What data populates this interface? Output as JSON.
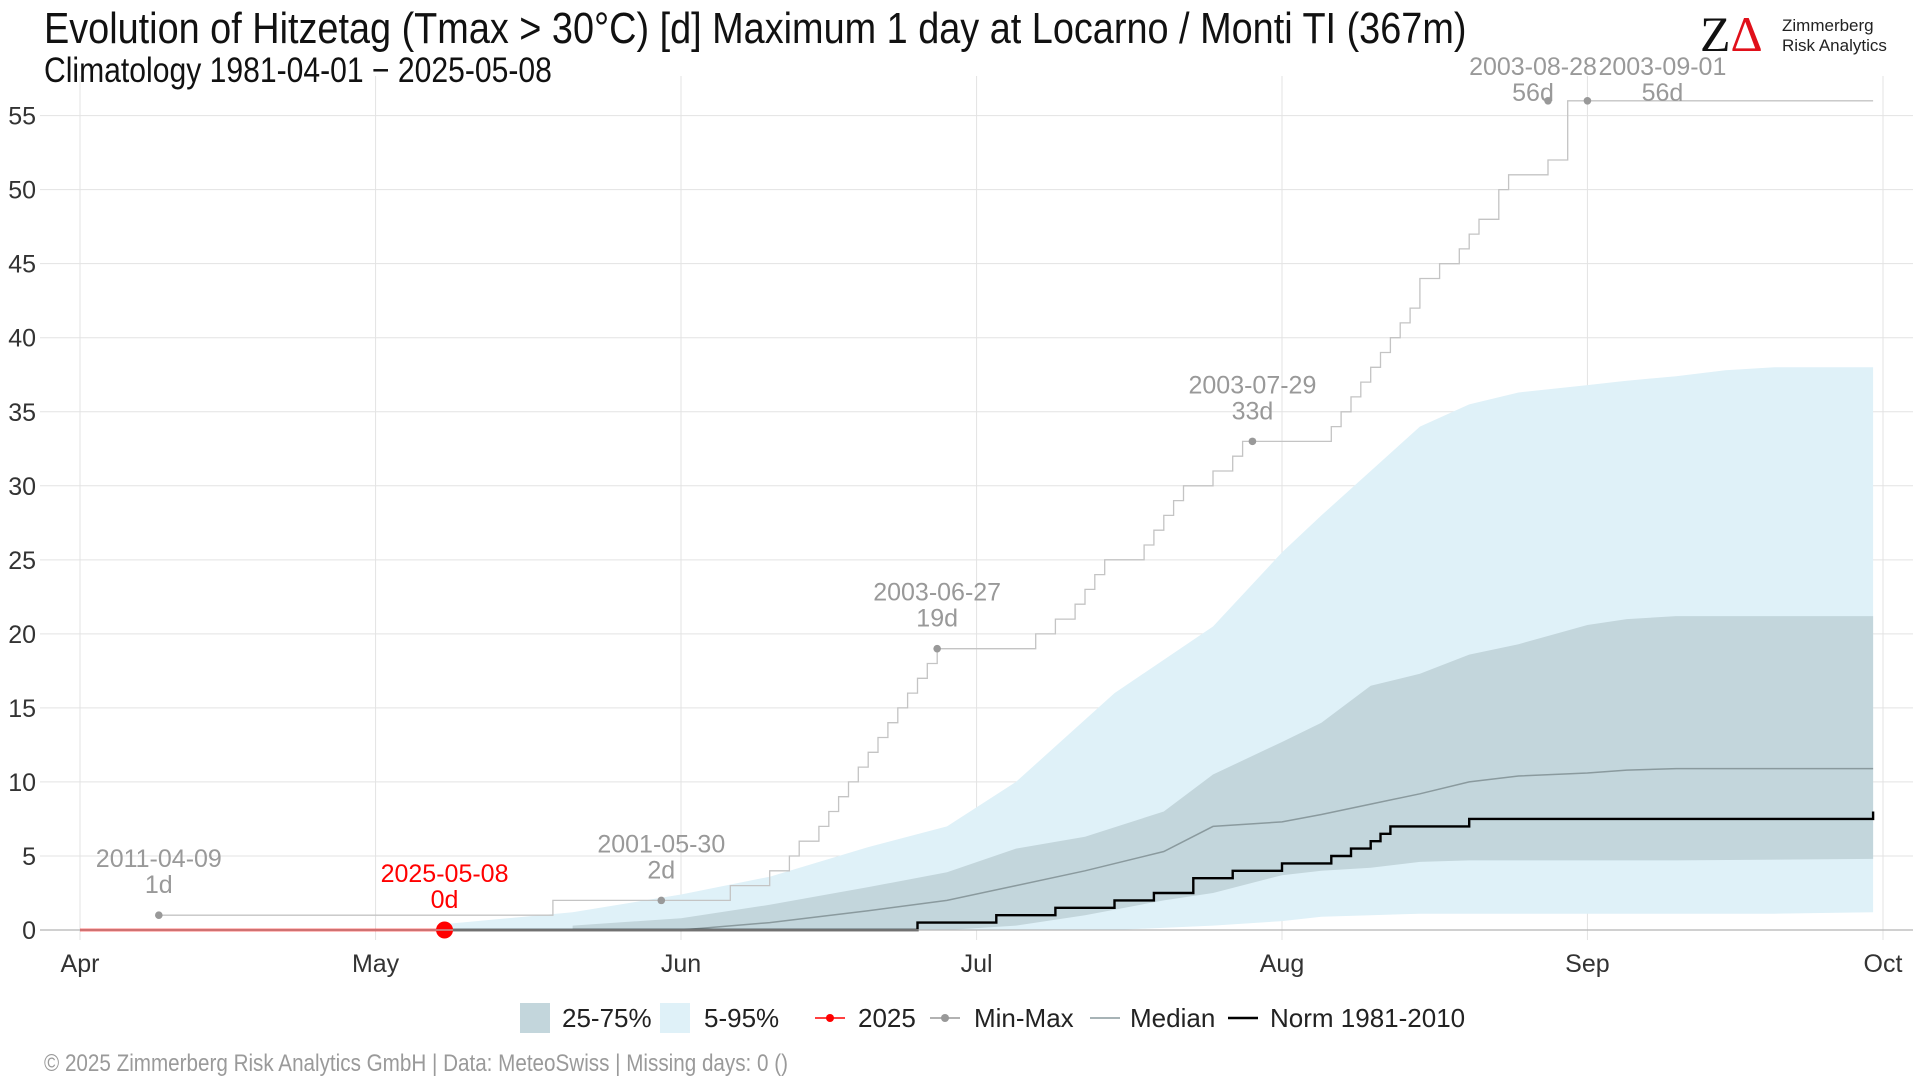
{
  "header": {
    "title": "Evolution of Hitzetag (Tmax > 30°C) [d] Maximum 1 day at Locarno / Monti  TI (367m)",
    "subtitle": "Climatology 1981-04-01 − 2025-05-08"
  },
  "logo": {
    "mark": "Z",
    "mark_delta": "Δ",
    "line1": "Zimmerberg",
    "line2": "Risk Analytics"
  },
  "footer": {
    "text": "©  2025 Zimmerberg Risk Analytics GmbH | Data: MeteoSwiss | Missing days: 0 ()"
  },
  "chart_data": {
    "type": "area",
    "x_axis": {
      "type": "date",
      "range": [
        "2025-04-01",
        "2025-10-01"
      ],
      "ticks": [
        {
          "date": "2025-04-01",
          "label": "Apr"
        },
        {
          "date": "2025-05-01",
          "label": "May"
        },
        {
          "date": "2025-06-01",
          "label": "Jun"
        },
        {
          "date": "2025-07-01",
          "label": "Jul"
        },
        {
          "date": "2025-08-01",
          "label": "Aug"
        },
        {
          "date": "2025-09-01",
          "label": "Sep"
        },
        {
          "date": "2025-10-01",
          "label": "Oct"
        }
      ]
    },
    "y_axis": {
      "range": [
        0,
        57
      ],
      "ticks": [
        0,
        5,
        10,
        15,
        20,
        25,
        30,
        35,
        40,
        45,
        50,
        55
      ]
    },
    "grid": true,
    "legend_position": "bottom",
    "colors": {
      "band_5_95": "#dff1f8",
      "band_25_75": "#c3d6dc",
      "median": "#8a9a9e",
      "norm": "#000000",
      "current": "#ff0000",
      "minmax": "#999999",
      "minmax_line": "#c4c4c4",
      "grid": "#e3e3e3",
      "axis": "#b5b5b5"
    },
    "series": [
      {
        "name": "5-95%",
        "kind": "band",
        "x": [
          "2025-05-08",
          "2025-05-21",
          "2025-06-01",
          "2025-06-10",
          "2025-06-20",
          "2025-06-28",
          "2025-07-05",
          "2025-07-15",
          "2025-07-25",
          "2025-08-01",
          "2025-08-05",
          "2025-08-10",
          "2025-08-15",
          "2025-08-20",
          "2025-08-25",
          "2025-09-01",
          "2025-09-05",
          "2025-09-10",
          "2025-09-15",
          "2025-09-20",
          "2025-09-30"
        ],
        "lower": [
          0,
          0,
          0,
          0,
          0,
          0,
          0,
          0,
          0.3,
          0.6,
          0.9,
          1.0,
          1.1,
          1.1,
          1.1,
          1.1,
          1.1,
          1.1,
          1.1,
          1.1,
          1.2
        ],
        "upper": [
          0.4,
          1.2,
          2.4,
          3.6,
          5.6,
          7.0,
          10.0,
          16.0,
          20.5,
          25.5,
          28.0,
          31.0,
          34.0,
          35.5,
          36.3,
          36.8,
          37.1,
          37.4,
          37.8,
          38.0,
          38.0
        ]
      },
      {
        "name": "25-75%",
        "kind": "band",
        "x": [
          "2025-05-21",
          "2025-06-01",
          "2025-06-10",
          "2025-06-20",
          "2025-06-28",
          "2025-07-05",
          "2025-07-12",
          "2025-07-20",
          "2025-07-25",
          "2025-08-01",
          "2025-08-05",
          "2025-08-10",
          "2025-08-15",
          "2025-08-20",
          "2025-08-25",
          "2025-09-01",
          "2025-09-05",
          "2025-09-10",
          "2025-09-30"
        ],
        "lower": [
          0,
          0,
          0,
          0,
          0,
          0.3,
          1.0,
          2.0,
          2.5,
          3.7,
          4.0,
          4.2,
          4.6,
          4.7,
          4.7,
          4.7,
          4.7,
          4.7,
          4.8
        ],
        "upper": [
          0.3,
          0.8,
          1.7,
          2.9,
          3.9,
          5.5,
          6.3,
          8.0,
          10.5,
          12.7,
          14.0,
          16.5,
          17.3,
          18.6,
          19.3,
          20.6,
          21.0,
          21.2,
          21.2
        ]
      },
      {
        "name": "Median",
        "kind": "line",
        "x": [
          "2025-06-01",
          "2025-06-10",
          "2025-06-20",
          "2025-06-28",
          "2025-07-05",
          "2025-07-12",
          "2025-07-20",
          "2025-07-25",
          "2025-08-01",
          "2025-08-05",
          "2025-08-10",
          "2025-08-15",
          "2025-08-20",
          "2025-08-25",
          "2025-09-01",
          "2025-09-05",
          "2025-09-10",
          "2025-09-30"
        ],
        "y": [
          0,
          0.5,
          1.3,
          2.0,
          3.0,
          4.0,
          5.3,
          7.0,
          7.3,
          7.8,
          8.5,
          9.2,
          10.0,
          10.4,
          10.6,
          10.8,
          10.9,
          10.9
        ]
      },
      {
        "name": "Norm 1981-2010",
        "kind": "step",
        "x": [
          "2025-05-08",
          "2025-06-25",
          "2025-07-03",
          "2025-07-09",
          "2025-07-15",
          "2025-07-19",
          "2025-07-23",
          "2025-07-27",
          "2025-08-01",
          "2025-08-06",
          "2025-08-08",
          "2025-08-10",
          "2025-08-11",
          "2025-08-12",
          "2025-08-20",
          "2025-09-30"
        ],
        "y": [
          0,
          0.5,
          1.0,
          1.5,
          2.0,
          2.5,
          3.5,
          4.0,
          4.5,
          5.0,
          5.5,
          6.0,
          6.5,
          7.0,
          7.5,
          8.0
        ]
      },
      {
        "name": "Min-Max",
        "kind": "step",
        "x": [
          "2025-04-09",
          "2025-05-19",
          "2025-05-29",
          "2025-06-06",
          "2025-06-10",
          "2025-06-12",
          "2025-06-13",
          "2025-06-15",
          "2025-06-16",
          "2025-06-17",
          "2025-06-18",
          "2025-06-19",
          "2025-06-20",
          "2025-06-21",
          "2025-06-22",
          "2025-06-23",
          "2025-06-24",
          "2025-06-25",
          "2025-06-26",
          "2025-06-27",
          "2025-07-07",
          "2025-07-09",
          "2025-07-11",
          "2025-07-12",
          "2025-07-13",
          "2025-07-14",
          "2025-07-15",
          "2025-07-18",
          "2025-07-19",
          "2025-07-20",
          "2025-07-21",
          "2025-07-22",
          "2025-07-23",
          "2025-07-25",
          "2025-07-27",
          "2025-07-28",
          "2025-07-29",
          "2025-08-06",
          "2025-08-07",
          "2025-08-08",
          "2025-08-09",
          "2025-08-10",
          "2025-08-11",
          "2025-08-12",
          "2025-08-13",
          "2025-08-14",
          "2025-08-15",
          "2025-08-17",
          "2025-08-19",
          "2025-08-20",
          "2025-08-21",
          "2025-08-22",
          "2025-08-23",
          "2025-08-24",
          "2025-08-28",
          "2025-08-30",
          "2025-09-30"
        ],
        "y": [
          1,
          2,
          2,
          3,
          4,
          5,
          6,
          7,
          8,
          9,
          10,
          11,
          12,
          13,
          14,
          15,
          16,
          17,
          18,
          19,
          20,
          21,
          22,
          23,
          24,
          25,
          25,
          26,
          27,
          28,
          29,
          30,
          30,
          31,
          32,
          33,
          33,
          34,
          35,
          36,
          37,
          38,
          39,
          40,
          41,
          42,
          44,
          45,
          46,
          47,
          48,
          48,
          50,
          51,
          52,
          56,
          56
        ]
      },
      {
        "name": "2025",
        "kind": "line",
        "x": [
          "2025-04-01",
          "2025-05-08"
        ],
        "y": [
          0,
          0
        ]
      }
    ],
    "markers": [
      {
        "series": "Min-Max",
        "x": "2025-04-09",
        "y": 1
      },
      {
        "series": "Min-Max",
        "x": "2025-05-30",
        "y": 2
      },
      {
        "series": "Min-Max",
        "x": "2025-06-27",
        "y": 19
      },
      {
        "series": "Min-Max",
        "x": "2025-07-29",
        "y": 33
      },
      {
        "series": "Min-Max",
        "x": "2025-08-28",
        "y": 56
      },
      {
        "series": "Min-Max",
        "x": "2025-09-01",
        "y": 56
      },
      {
        "series": "2025",
        "x": "2025-05-08",
        "y": 0
      }
    ],
    "annotations": [
      {
        "date_label": "2011-04-09",
        "value_label": "1d",
        "x": "2025-04-09",
        "y": 1,
        "color": "#999999"
      },
      {
        "date_label": "2025-05-08",
        "value_label": "0d",
        "x": "2025-05-08",
        "y": 0,
        "color": "#ff0000"
      },
      {
        "date_label": "2001-05-30",
        "value_label": "2d",
        "x": "2025-05-30",
        "y": 2,
        "color": "#999999"
      },
      {
        "date_label": "2003-06-27",
        "value_label": "19d",
        "x": "2025-06-27",
        "y": 19,
        "color": "#999999"
      },
      {
        "date_label": "2003-07-29",
        "value_label": "33d",
        "x": "2025-07-29",
        "y": 33,
        "color": "#999999"
      },
      {
        "date_label": "2003-08-28",
        "value_label": "56d",
        "x": "2025-08-28",
        "y": 56,
        "color": "#999999"
      },
      {
        "date_label": "2003-09-01",
        "value_label": "56d",
        "x": "2025-09-01",
        "y": 56,
        "color": "#999999"
      }
    ],
    "legend": [
      {
        "label": "25-75%",
        "symbol": "band-dark"
      },
      {
        "label": "5-95%",
        "symbol": "band-light"
      },
      {
        "label": "2025",
        "symbol": "line-dot-red"
      },
      {
        "label": "Min-Max",
        "symbol": "line-dot-grey"
      },
      {
        "label": "Median",
        "symbol": "line-grey"
      },
      {
        "label": "Norm 1981-2010",
        "symbol": "line-black"
      }
    ]
  }
}
